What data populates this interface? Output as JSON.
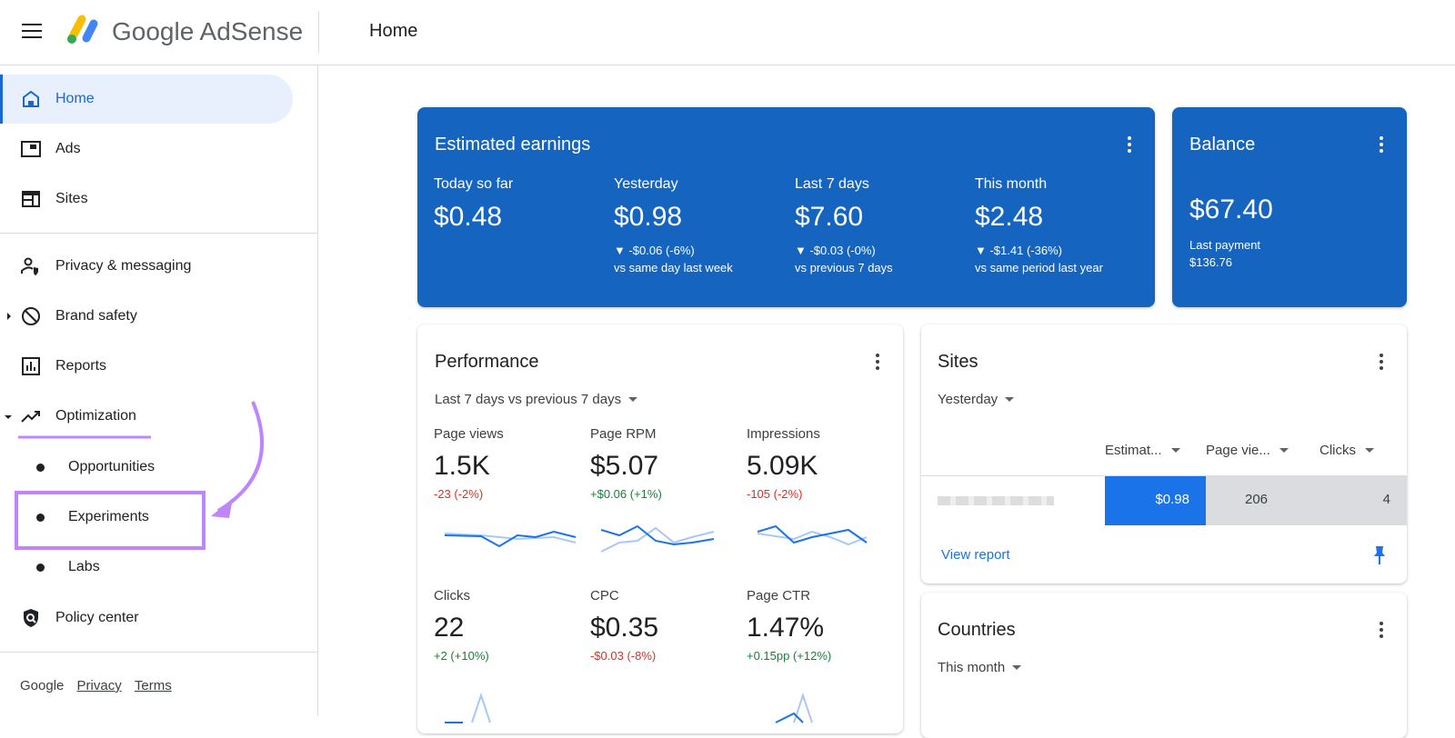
{
  "header": {
    "brand": "Google AdSense",
    "page_title": "Home"
  },
  "sidebar": {
    "items": [
      {
        "label": "Home",
        "icon": "home-icon"
      },
      {
        "label": "Ads",
        "icon": "ads-icon"
      },
      {
        "label": "Sites",
        "icon": "sites-icon"
      },
      {
        "label": "Privacy & messaging",
        "icon": "privacy-icon"
      },
      {
        "label": "Brand safety",
        "icon": "block-icon"
      },
      {
        "label": "Reports",
        "icon": "reports-icon"
      },
      {
        "label": "Optimization",
        "icon": "trending-up-icon"
      },
      {
        "label": "Opportunities"
      },
      {
        "label": "Experiments"
      },
      {
        "label": "Labs"
      },
      {
        "label": "Policy center",
        "icon": "shield-icon"
      }
    ],
    "footer": {
      "google": "Google",
      "privacy": "Privacy",
      "terms": "Terms"
    }
  },
  "earnings": {
    "title": "Estimated earnings",
    "cols": [
      {
        "label": "Today so far",
        "value": "$0.48"
      },
      {
        "label": "Yesterday",
        "value": "$0.98",
        "delta": "▼ -$0.06 (-6%)",
        "compare": "vs same day last week"
      },
      {
        "label": "Last 7 days",
        "value": "$7.60",
        "delta": "▼ -$0.03 (-0%)",
        "compare": "vs previous 7 days"
      },
      {
        "label": "This month",
        "value": "$2.48",
        "delta": "▼ -$1.41 (-36%)",
        "compare": "vs same period last year"
      }
    ]
  },
  "balance": {
    "title": "Balance",
    "value": "$67.40",
    "last_payment_label": "Last payment",
    "last_payment": "$136.76"
  },
  "performance": {
    "title": "Performance",
    "range": "Last 7 days vs previous 7 days",
    "metrics": [
      {
        "label": "Page views",
        "value": "1.5K",
        "delta": "-23 (-2%)",
        "trend": "neg"
      },
      {
        "label": "Page RPM",
        "value": "$5.07",
        "delta": "+$0.06 (+1%)",
        "trend": "pos"
      },
      {
        "label": "Impressions",
        "value": "5.09K",
        "delta": "-105 (-2%)",
        "trend": "neg"
      },
      {
        "label": "Clicks",
        "value": "22",
        "delta": "+2 (+10%)",
        "trend": "pos"
      },
      {
        "label": "CPC",
        "value": "$0.35",
        "delta": "-$0.03 (-8%)",
        "trend": "neg"
      },
      {
        "label": "Page CTR",
        "value": "1.47%",
        "delta": "+0.15pp (+12%)",
        "trend": "pos"
      }
    ]
  },
  "sites": {
    "title": "Sites",
    "range": "Yesterday",
    "columns": [
      "Estimat...",
      "Page vie...",
      "Clicks"
    ],
    "row": {
      "earnings": "$0.98",
      "page_views": "206",
      "clicks": "4"
    },
    "view_report": "View report"
  },
  "countries": {
    "title": "Countries",
    "range": "This month"
  },
  "colors": {
    "accent": "#1565c0",
    "annotation": "#c084fc"
  }
}
